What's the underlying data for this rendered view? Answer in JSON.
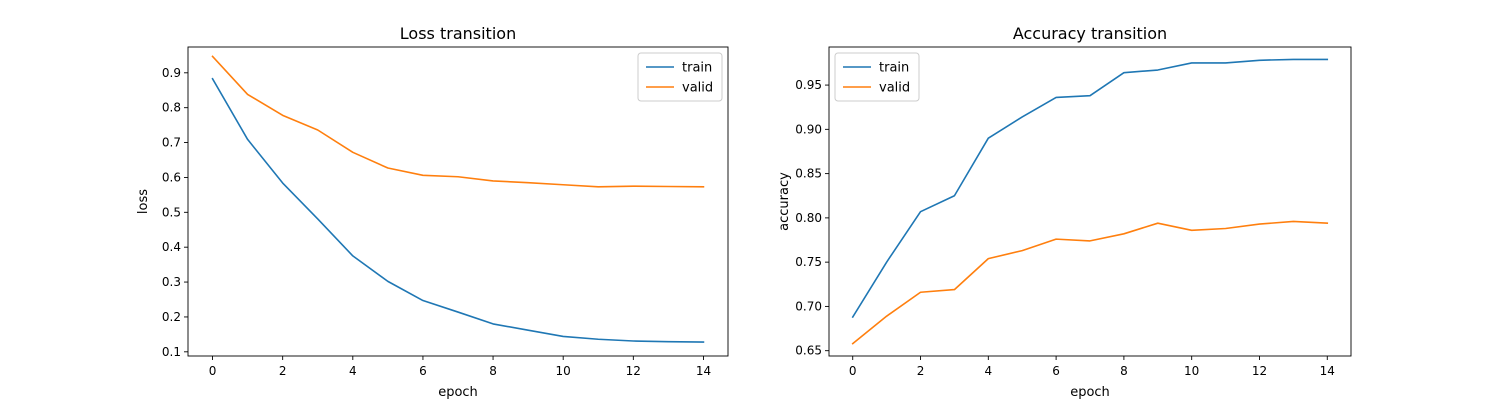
{
  "colors": {
    "train": "#1f77b4",
    "valid": "#ff7f0e"
  },
  "chart_data": [
    {
      "type": "line",
      "title": "Loss transition",
      "xlabel": "epoch",
      "ylabel": "loss",
      "xlim": [
        -0.7,
        14.7
      ],
      "ylim": [
        0.088,
        0.974
      ],
      "xticks": [
        0,
        2,
        4,
        6,
        8,
        10,
        12,
        14
      ],
      "yticks": [
        0.1,
        0.2,
        0.3,
        0.4,
        0.5,
        0.6,
        0.7,
        0.8,
        0.9
      ],
      "ytick_labels": [
        "0.1",
        "0.2",
        "0.3",
        "0.4",
        "0.5",
        "0.6",
        "0.7",
        "0.8",
        "0.9"
      ],
      "legend_loc": "upper right",
      "x": [
        0,
        1,
        2,
        3,
        4,
        5,
        6,
        7,
        8,
        9,
        10,
        11,
        12,
        13,
        14
      ],
      "series": [
        {
          "name": "train",
          "values": [
            0.883,
            0.709,
            0.584,
            0.481,
            0.375,
            0.302,
            0.247,
            0.214,
            0.18,
            0.162,
            0.144,
            0.136,
            0.131,
            0.129,
            0.128
          ]
        },
        {
          "name": "valid",
          "values": [
            0.947,
            0.838,
            0.778,
            0.736,
            0.672,
            0.627,
            0.606,
            0.602,
            0.59,
            0.585,
            0.579,
            0.573,
            0.575,
            0.574,
            0.573
          ]
        }
      ]
    },
    {
      "type": "line",
      "title": "Accuracy transition",
      "xlabel": "epoch",
      "ylabel": "accuracy",
      "xlim": [
        -0.7,
        14.7
      ],
      "ylim": [
        0.644,
        0.993
      ],
      "xticks": [
        0,
        2,
        4,
        6,
        8,
        10,
        12,
        14
      ],
      "yticks": [
        0.65,
        0.7,
        0.75,
        0.8,
        0.85,
        0.9,
        0.95
      ],
      "ytick_labels": [
        "0.65",
        "0.70",
        "0.75",
        "0.80",
        "0.85",
        "0.90",
        "0.95"
      ],
      "legend_loc": "upper left",
      "x": [
        0,
        1,
        2,
        3,
        4,
        5,
        6,
        7,
        8,
        9,
        10,
        11,
        12,
        13,
        14
      ],
      "series": [
        {
          "name": "train",
          "values": [
            0.688,
            0.75,
            0.807,
            0.825,
            0.89,
            0.914,
            0.936,
            0.938,
            0.964,
            0.967,
            0.975,
            0.975,
            0.978,
            0.979,
            0.979
          ]
        },
        {
          "name": "valid",
          "values": [
            0.658,
            0.689,
            0.716,
            0.719,
            0.754,
            0.763,
            0.776,
            0.774,
            0.782,
            0.794,
            0.786,
            0.788,
            0.793,
            0.796,
            0.794
          ]
        }
      ]
    }
  ]
}
